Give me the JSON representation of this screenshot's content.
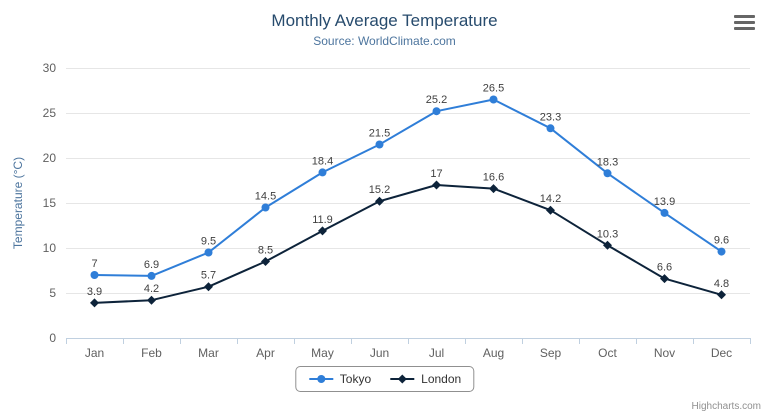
{
  "header": {
    "title": "Monthly Average Temperature",
    "subtitle": "Source: WorldClimate.com"
  },
  "icons": {
    "context_menu": "hamburger"
  },
  "credits": {
    "label": "Highcharts.com"
  },
  "chart_data": {
    "type": "line",
    "title": "Monthly Average Temperature",
    "subtitle": "Source: WorldClimate.com",
    "categories": [
      "Jan",
      "Feb",
      "Mar",
      "Apr",
      "May",
      "Jun",
      "Jul",
      "Aug",
      "Sep",
      "Oct",
      "Nov",
      "Dec"
    ],
    "series": [
      {
        "name": "Tokyo",
        "color": "#2f7ed8",
        "marker": "circle",
        "values": [
          7,
          6.9,
          9.5,
          14.5,
          18.4,
          21.5,
          25.2,
          26.5,
          23.3,
          18.3,
          13.9,
          9.6
        ]
      },
      {
        "name": "London",
        "color": "#0d233a",
        "marker": "diamond",
        "values": [
          3.9,
          4.2,
          5.7,
          8.5,
          11.9,
          15.2,
          17,
          16.6,
          14.2,
          10.3,
          6.6,
          4.8
        ]
      }
    ],
    "xlabel": "",
    "ylabel": "Temperature (°C)",
    "ylim": [
      0,
      30
    ],
    "yticks": [
      0,
      5,
      10,
      15,
      20,
      25,
      30
    ],
    "grid": true,
    "legend_position": "bottom",
    "data_labels": true,
    "colors": {
      "grid": "#e6e6e6",
      "axis_line": "#c0d0e0",
      "tick": "#c0d0e0",
      "axis_label": "#606060",
      "axis_title": "#4d759e",
      "title": "#274b6d",
      "subtitle": "#4d759e",
      "data_label": "#404040",
      "legend_border": "#909090",
      "legend_text": "#333333",
      "credits": "#909090",
      "menu_icon": "#666666"
    }
  }
}
